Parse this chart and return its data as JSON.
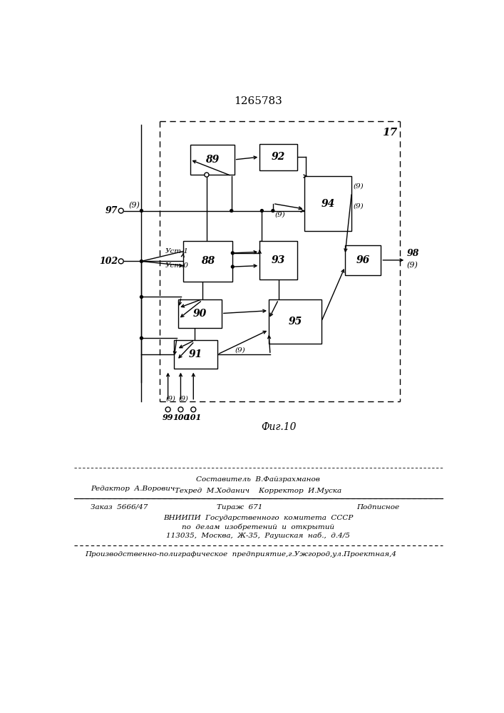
{
  "title": "1265783",
  "bg_color": "#ffffff",
  "lw": 1.0,
  "footer": {
    "sostavitel": "Составитель  В.Файзрахманов",
    "redaktor": "Редактор  А.Ворович",
    "tehred": "Техред  М.Ходанич    Корректор  И.Муска",
    "zakaz": "Заказ  5666/47",
    "tirazh": "Тираж  671",
    "podpisnoe": "Подписное",
    "inst1": "ВНИИПИ  Государственного  комитета  СССР",
    "inst2": "по  делам  изобретений  и  открытий",
    "inst3": "113035,  Москва,  Ж-35,  Раушская  наб.,  д.4/5",
    "printer": "Производственно-полиграфическое  предприятие,г.Ужгород,ул.Проектная,4"
  }
}
